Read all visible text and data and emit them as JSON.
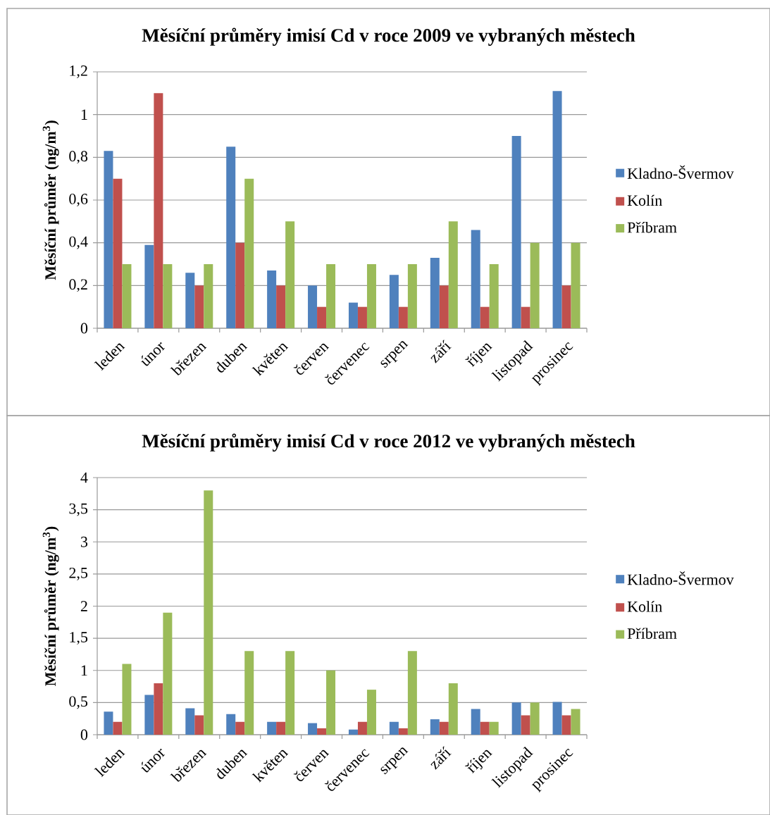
{
  "chart_data": [
    {
      "type": "bar",
      "title": "Měsíční průměry imisí Cd v roce 2009 ve vybraných městech",
      "ylabel": "Měsíční průměr (ng/m$^{3}$)",
      "categories": [
        "leden",
        "únor",
        "březen",
        "duben",
        "květen",
        "červen",
        "červenec",
        "srpen",
        "září",
        "říjen",
        "listopad",
        "prosinec"
      ],
      "series": [
        {
          "name": "Kladno-Švermov",
          "color": "#4f81bd",
          "values": [
            0.83,
            0.39,
            0.26,
            0.85,
            0.27,
            0.2,
            0.12,
            0.25,
            0.33,
            0.46,
            0.9,
            1.11
          ]
        },
        {
          "name": "Kolín",
          "color": "#c0504d",
          "values": [
            0.7,
            1.1,
            0.2,
            0.4,
            0.2,
            0.1,
            0.1,
            0.1,
            0.2,
            0.1,
            0.1,
            0.2
          ]
        },
        {
          "name": "Příbram",
          "color": "#9bbb59",
          "values": [
            0.3,
            0.3,
            0.3,
            0.7,
            0.5,
            0.3,
            0.3,
            0.3,
            0.5,
            0.3,
            0.4,
            0.4
          ]
        }
      ],
      "ylim": [
        0,
        1.2
      ],
      "yticks": [
        0,
        {
          "value": 0.2,
          "label": "0,2"
        },
        {
          "value": 0.4,
          "label": "0,4"
        },
        {
          "value": 0.6,
          "label": "0,6"
        },
        {
          "value": 0.8,
          "label": "0,8"
        },
        1,
        {
          "value": 1.2,
          "label": "1,2"
        }
      ],
      "grid": "y",
      "legend": "right"
    },
    {
      "type": "bar",
      "title": "Měsíční průměry imisí Cd v roce 2012 ve vybraných městech",
      "ylabel": "Měsíční průměr (ng/m$^{3}$)",
      "categories": [
        "leden",
        "únor",
        "březen",
        "duben",
        "květen",
        "červen",
        "červenec",
        "srpen",
        "září",
        "říjen",
        "listopad",
        "prosinec"
      ],
      "series": [
        {
          "name": "Kladno-Švermov",
          "color": "#4f81bd",
          "values": [
            0.36,
            0.62,
            0.41,
            0.32,
            0.2,
            0.18,
            0.08,
            0.2,
            0.24,
            0.4,
            0.5,
            0.51
          ]
        },
        {
          "name": "Kolín",
          "color": "#c0504d",
          "values": [
            0.2,
            0.8,
            0.3,
            0.2,
            0.2,
            0.1,
            0.2,
            0.1,
            0.2,
            0.2,
            0.3,
            0.3
          ]
        },
        {
          "name": "Příbram",
          "color": "#9bbb59",
          "values": [
            1.1,
            1.9,
            3.8,
            1.3,
            1.3,
            1.0,
            0.7,
            1.3,
            0.8,
            0.2,
            0.5,
            0.4
          ]
        }
      ],
      "ylim": [
        0,
        4
      ],
      "yticks": [
        0,
        {
          "value": 0.5,
          "label": "0,5"
        },
        1,
        {
          "value": 1.5,
          "label": "1,5"
        },
        2,
        {
          "value": 2.5,
          "label": "2,5"
        },
        3,
        {
          "value": 3.5,
          "label": "3,5"
        },
        4
      ],
      "grid": "y",
      "legend": "right"
    }
  ]
}
